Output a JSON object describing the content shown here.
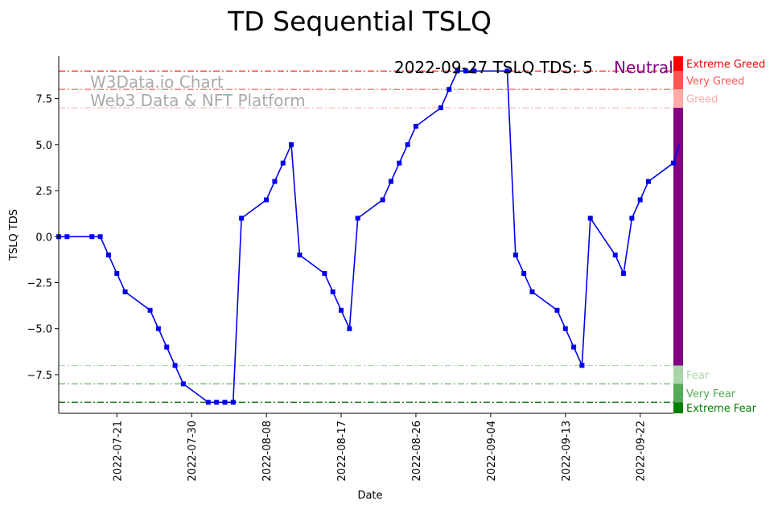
{
  "chart_data": {
    "type": "line",
    "title": "TD Sequential TSLQ",
    "xlabel": "Date",
    "ylabel": "TSLQ TDS",
    "ylim": [
      -9.6,
      9.8
    ],
    "xlim_day_offsets": [
      -7,
      67
    ],
    "yticks": [
      {
        "value": 7.5,
        "label": "7.5"
      },
      {
        "value": 5.0,
        "label": "5.0"
      },
      {
        "value": 2.5,
        "label": "2.5"
      },
      {
        "value": 0.0,
        "label": "0.0"
      },
      {
        "value": -2.5,
        "label": "−2.5"
      },
      {
        "value": -5.0,
        "label": "−5.0"
      },
      {
        "value": -7.5,
        "label": "−7.5"
      }
    ],
    "xticks": [
      {
        "offset": 0,
        "label": "2022-07-21"
      },
      {
        "offset": 9,
        "label": "2022-07-30"
      },
      {
        "offset": 18,
        "label": "2022-08-08"
      },
      {
        "offset": 27,
        "label": "2022-08-17"
      },
      {
        "offset": 36,
        "label": "2022-08-26"
      },
      {
        "offset": 45,
        "label": "2022-09-04"
      },
      {
        "offset": 54,
        "label": "2022-09-13"
      },
      {
        "offset": 63,
        "label": "2022-09-22"
      }
    ],
    "series": [
      {
        "name": "TSLQ TDS",
        "color": "#0000ee",
        "x": [
          -7,
          -6,
          -3,
          -2,
          -1,
          0,
          1,
          4,
          5,
          6,
          7,
          8,
          11,
          12,
          13,
          14,
          15,
          18,
          19,
          20,
          21,
          22,
          25,
          26,
          27,
          28,
          29,
          32,
          33,
          34,
          35,
          36,
          39,
          40,
          41,
          42,
          43,
          47,
          48,
          49,
          50,
          53,
          54,
          55,
          56,
          57,
          60,
          61,
          62,
          63,
          64,
          67,
          67.7
        ],
        "y": [
          0,
          0,
          0,
          0,
          -1,
          -2,
          -3,
          -4,
          -5,
          -6,
          -7,
          -8,
          -9,
          -9,
          -9,
          -9,
          1,
          2,
          3,
          4,
          5,
          -1,
          -2,
          -3,
          -4,
          -5,
          1,
          2,
          3,
          4,
          5,
          6,
          7,
          8,
          9,
          9,
          9,
          9,
          -1,
          -2,
          -3,
          -4,
          -5,
          -6,
          -7,
          1,
          -1,
          -2,
          1,
          2,
          3,
          4,
          5
        ]
      }
    ],
    "reference_lines": [
      {
        "value": 9,
        "color": "#ff0000",
        "opacity": 1.0
      },
      {
        "value": 8,
        "color": "#ff4444",
        "opacity": 0.9
      },
      {
        "value": 7,
        "color": "#ffaaaa",
        "opacity": 0.9
      },
      {
        "value": -7,
        "color": "#aad4aa",
        "opacity": 0.9
      },
      {
        "value": -8,
        "color": "#55aa55",
        "opacity": 0.9
      },
      {
        "value": -9,
        "color": "#006400",
        "opacity": 1.0
      }
    ],
    "sentiment_zones": [
      {
        "label": "Extreme Greed",
        "from": 9,
        "to": 9.8,
        "color": "#ff0000"
      },
      {
        "label": "Very Greed",
        "from": 8,
        "to": 9,
        "color": "#ff5555"
      },
      {
        "label": "Greed",
        "from": 7,
        "to": 8,
        "color": "#ffaaaa"
      },
      {
        "label": "",
        "from": -7,
        "to": 7,
        "color": "#800080"
      },
      {
        "label": "Fear",
        "from": -8,
        "to": -7,
        "color": "#aad4aa"
      },
      {
        "label": "Very Fear",
        "from": -9,
        "to": -8,
        "color": "#55aa55"
      },
      {
        "label": "Extreme Fear",
        "from": -9.6,
        "to": -9,
        "color": "#008000"
      }
    ],
    "annotation": {
      "text": "2022-09-27 TSLQ TDS: 5",
      "sentiment": "Neutral",
      "sentiment_color": "#800080"
    },
    "watermark": {
      "line1": "W3Data.io Chart",
      "line2": "Web3 Data & NFT Platform",
      "color": "#aaaaaa"
    }
  }
}
